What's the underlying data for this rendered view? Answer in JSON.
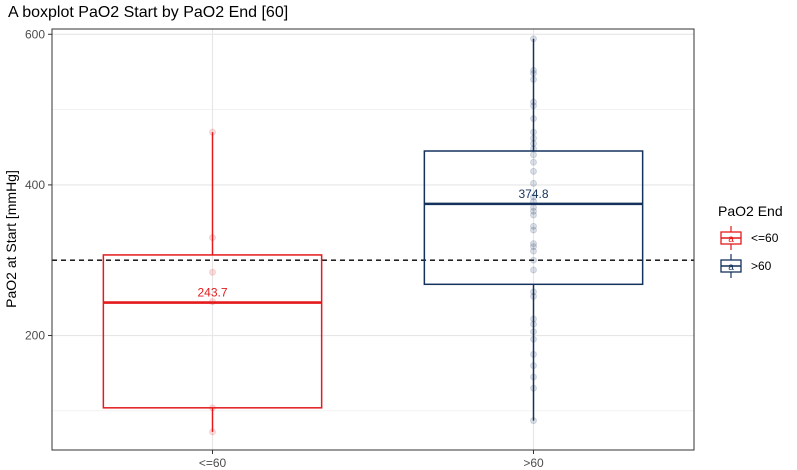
{
  "chart_data": {
    "type": "boxplot",
    "title": "A boxplot  PaO2 Start by PaO2 End [60]",
    "xlabel": "",
    "ylabel": "PaO2 at Start [mmHg]",
    "ylim": [
      48,
      607
    ],
    "y_ticks": [
      200,
      400,
      600
    ],
    "grid": true,
    "reference_line": {
      "y": 300,
      "style": "dashed"
    },
    "legend": {
      "title": "PaO2 End",
      "position": "right",
      "entries": [
        {
          "label": "<=60",
          "glyph": "a",
          "color": "#e41a1c"
        },
        {
          "label": ">60",
          "glyph": "a",
          "color": "#14325c"
        }
      ]
    },
    "categories": [
      "<=60",
      ">60"
    ],
    "boxes": [
      {
        "category": "<=60",
        "color": "#e41a1c",
        "min": 72,
        "q1": 104,
        "median": 243.7,
        "q3": 307,
        "max": 470,
        "median_label": "243.7",
        "points": [
          72,
          104,
          245,
          284,
          330,
          470
        ]
      },
      {
        "category": ">60",
        "color": "#14325c",
        "min": 87,
        "q1": 268,
        "median": 374.8,
        "q3": 445,
        "max": 594,
        "median_label": "374.8",
        "points": [
          87,
          130,
          145,
          160,
          175,
          195,
          205,
          215,
          222,
          252,
          258,
          287,
          300,
          312,
          318,
          322,
          340,
          345,
          360,
          365,
          370,
          378,
          384,
          402,
          418,
          430,
          440,
          448,
          455,
          462,
          470,
          488,
          505,
          510,
          540,
          548,
          552,
          594
        ]
      }
    ]
  }
}
